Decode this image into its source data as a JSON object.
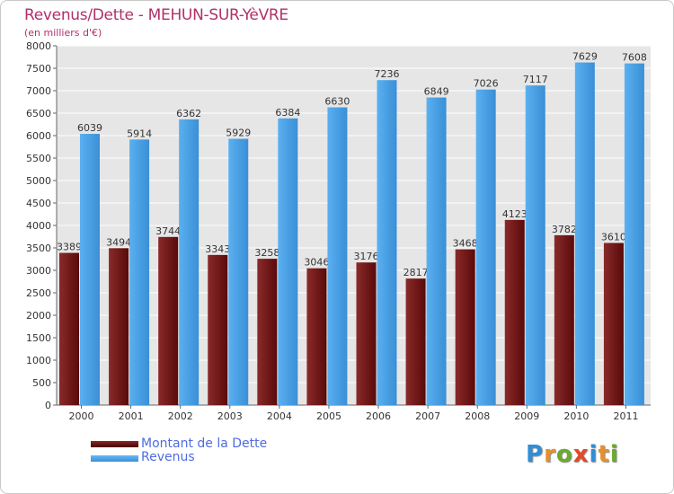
{
  "chart_data": {
    "type": "bar",
    "title": "Revenus/Dette - MEHUN-SUR-YèVRE",
    "subtitle": "(en milliers d'€)",
    "categories": [
      "2000",
      "2001",
      "2002",
      "2003",
      "2004",
      "2005",
      "2006",
      "2007",
      "2008",
      "2009",
      "2010",
      "2011"
    ],
    "series": [
      {
        "name": "Montant de la Dette",
        "color": "#7a1c1c",
        "values": [
          3389,
          3494,
          3744,
          3343,
          3258,
          3046,
          3176,
          2817,
          3468,
          4123,
          3782,
          3610
        ]
      },
      {
        "name": "Revenus",
        "color": "#4a9fe0",
        "values": [
          6039,
          5914,
          6362,
          5929,
          6384,
          6630,
          7236,
          6849,
          7026,
          7117,
          7629,
          7608
        ]
      }
    ],
    "yticks": [
      0,
      500,
      1000,
      1500,
      2000,
      2500,
      3000,
      3500,
      4000,
      4500,
      5000,
      5500,
      6000,
      6500,
      7000,
      7500,
      8000
    ],
    "ylim": [
      0,
      8000
    ],
    "grid": true,
    "legend_position": "bottom-left"
  },
  "branding": {
    "logo_letters": [
      "P",
      "r",
      "o",
      "x",
      "i",
      "t",
      "i"
    ],
    "logo_colors": [
      "#2f8fd6",
      "#e6902a",
      "#6aaa2f",
      "#e04a2a",
      "#2f8fd6",
      "#e6902a",
      "#6aaa2f"
    ]
  }
}
